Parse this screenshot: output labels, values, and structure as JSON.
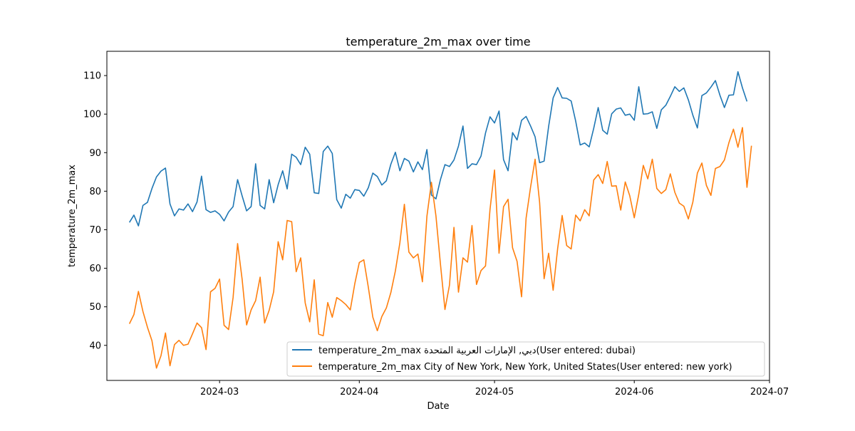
{
  "chart_data": {
    "type": "line",
    "title": "temperature_2m_max over time",
    "xlabel": "Date",
    "ylabel": "temperature_2m_max",
    "x_ticks": [
      "2024-03",
      "2024-04",
      "2024-05",
      "2024-06",
      "2024-07"
    ],
    "y_ticks": [
      "40",
      "50",
      "60",
      "70",
      "80",
      "90",
      "100",
      "110"
    ],
    "xlim": [
      "2024-02-05",
      "2024-07-01"
    ],
    "ylim": [
      30.9,
      116.3
    ],
    "x_start": "2024-02-10",
    "grid": false,
    "legend_position": "lower right",
    "series": [
      {
        "name": "temperature_2m_max دبي, الإمارات العربية المتحدة(User entered: dubai)",
        "color": "#1f77b4",
        "values": [
          71.9,
          73.8,
          71.0,
          76.3,
          77.1,
          80.7,
          83.7,
          85.2,
          86.0,
          76.7,
          73.6,
          75.4,
          75.1,
          76.7,
          74.7,
          77.2,
          83.9,
          75.2,
          74.5,
          74.9,
          74.0,
          72.3,
          74.6,
          76.0,
          83.0,
          78.8,
          74.9,
          76.0,
          87.1,
          76.3,
          75.4,
          83.0,
          77.0,
          81.7,
          85.3,
          80.6,
          89.6,
          88.8,
          86.9,
          91.4,
          89.6,
          79.6,
          79.4,
          90.3,
          91.7,
          89.8,
          77.8,
          75.6,
          79.2,
          78.2,
          80.4,
          80.2,
          78.7,
          80.9,
          84.7,
          83.8,
          81.6,
          82.7,
          87.0,
          90.1,
          85.3,
          88.5,
          87.8,
          85.0,
          87.6,
          85.6,
          90.8,
          79.0,
          78.0,
          83.0,
          86.9,
          86.4,
          88.1,
          91.7,
          96.9,
          85.9,
          87.1,
          86.9,
          89.1,
          95.1,
          99.3,
          97.7,
          100.8,
          88.2,
          85.3,
          95.2,
          93.3,
          98.4,
          99.4,
          96.9,
          94.1,
          87.4,
          87.8,
          96.8,
          104.2,
          106.9,
          104.2,
          104.1,
          103.4,
          98.2,
          92.0,
          92.5,
          91.5,
          96.3,
          101.7,
          95.8,
          94.8,
          100.1,
          101.3,
          101.6,
          99.7,
          100.0,
          98.4,
          107.1,
          100.0,
          100.1,
          100.6,
          96.3,
          101.1,
          102.3,
          104.6,
          107.1,
          105.9,
          106.8,
          103.7,
          99.7,
          96.4,
          104.8,
          105.5,
          107.0,
          108.7,
          104.9,
          101.7,
          104.9,
          105.0,
          111.0,
          106.8,
          103.3
        ]
      },
      {
        "name": "temperature_2m_max City of New York, New York, United States(User entered: new york)",
        "color": "#ff7f0e",
        "values": [
          45.6,
          48.0,
          54.0,
          48.8,
          44.7,
          41.2,
          34.1,
          37.3,
          43.2,
          34.7,
          40.2,
          41.3,
          40.0,
          40.3,
          43.0,
          45.8,
          44.6,
          38.9,
          53.9,
          54.8,
          57.2,
          45.2,
          44.1,
          52.4,
          66.4,
          57.2,
          45.3,
          49.2,
          51.6,
          57.7,
          45.8,
          49.1,
          53.9,
          66.9,
          62.2,
          72.4,
          72.1,
          59.1,
          62.7,
          51.0,
          46.1,
          57.0,
          42.9,
          42.5,
          51.1,
          47.3,
          52.4,
          51.6,
          50.6,
          49.2,
          56.0,
          61.5,
          62.2,
          55.1,
          47.3,
          43.8,
          47.5,
          49.7,
          53.7,
          59.3,
          66.6,
          76.6,
          64.2,
          62.7,
          63.7,
          56.5,
          73.5,
          82.3,
          73.6,
          61.1,
          49.3,
          55.6,
          70.6,
          53.8,
          62.7,
          61.6,
          71.1,
          55.8,
          59.4,
          60.6,
          75.3,
          85.5,
          63.9,
          76.0,
          77.9,
          65.3,
          61.8,
          52.6,
          73.0,
          81.1,
          88.3,
          77.1,
          57.3,
          63.9,
          54.3,
          65.1,
          73.7,
          65.9,
          65.0,
          73.8,
          72.3,
          75.2,
          73.6,
          82.9,
          84.3,
          82.0,
          87.7,
          81.3,
          81.4,
          75.1,
          82.4,
          78.8,
          73.1,
          79.2,
          86.7,
          83.2,
          88.3,
          80.7,
          79.4,
          80.4,
          84.5,
          79.7,
          76.9,
          76.1,
          72.8,
          77.2,
          84.7,
          87.3,
          81.5,
          78.9,
          85.9,
          86.4,
          88.1,
          92.6,
          96.1,
          91.4,
          96.5,
          81.0,
          91.8
        ]
      }
    ]
  }
}
